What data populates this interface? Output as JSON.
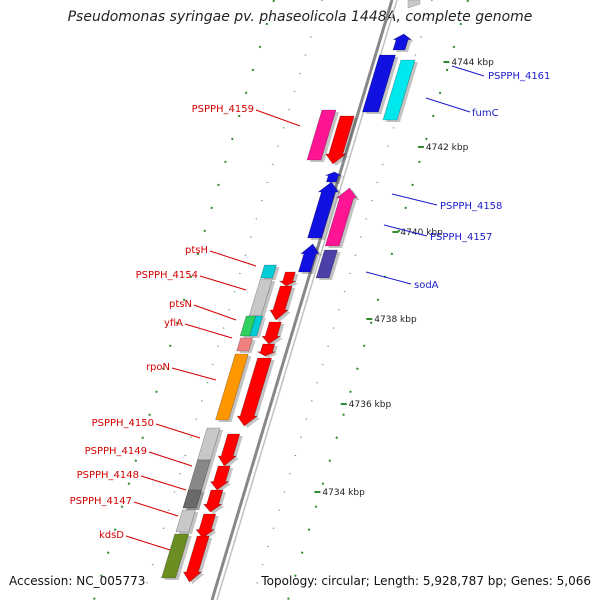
{
  "title": "Pseudomonas syringae pv. phaseolicola 1448A, complete genome",
  "accession": "Accession: NC_005773",
  "topology": "Topology: circular; Length: 5,928,787 bp; Genes: 5,066",
  "colors": {
    "backbone": "#888888",
    "ruler_tick": "#2e8b2e",
    "forward_label": "#d40000",
    "reverse_label": "#1a1acc",
    "leader_forward": "#d40000",
    "leader_reverse": "#1a1acc"
  },
  "kbp_ticks": [
    "4734 kbp",
    "4736 kbp",
    "4738 kbp",
    "4740 kbp",
    "4742 kbp",
    "4744 kbp"
  ],
  "reverse_genes": [
    {
      "label": "PSPPH_4161",
      "color": "#1010e0"
    },
    {
      "label": "fumC",
      "color": "#00e8ee"
    },
    {
      "label": "PSPPH_4158",
      "color": "#ff1493"
    },
    {
      "label": "PSPPH_4157",
      "color": "#1010e0"
    },
    {
      "label": "sodA",
      "color": "#4b3fa8"
    }
  ],
  "forward_genes": [
    {
      "label": "PSPPH_4159",
      "color": "#ff1493"
    },
    {
      "label": "ptsH",
      "color": "#00ccd6"
    },
    {
      "label": "PSPPH_4154",
      "color": "#c8c8c8"
    },
    {
      "label": "ptsN",
      "color": "#2fd060"
    },
    {
      "label": "yfiA",
      "color": "#f08080"
    },
    {
      "label": "rpoN",
      "color": "#ff9800"
    },
    {
      "label": "PSPPH_4150",
      "color": "#c8c8c8"
    },
    {
      "label": "PSPPH_4149",
      "color": "#888888"
    },
    {
      "label": "PSPPH_4148",
      "color": "#6a6a6a"
    },
    {
      "label": "PSPPH_4147",
      "color": "#c8c8c8"
    },
    {
      "label": "kdsD",
      "color": "#6b8e23"
    }
  ]
}
